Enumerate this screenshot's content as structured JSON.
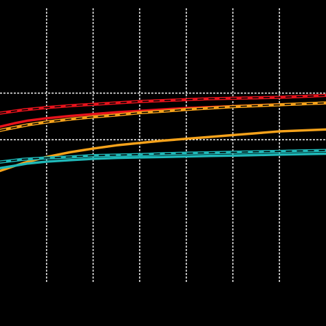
{
  "chart_data": {
    "type": "line",
    "background": "#000000",
    "grid": true,
    "grid_color": "#ffffff",
    "grid_style": "dashed",
    "x_range": [
      0,
      7
    ],
    "y_range": [
      0,
      7
    ],
    "x_gridlines": [
      1,
      2,
      3,
      4,
      5,
      6
    ],
    "y_gridlines": [
      4,
      5
    ],
    "series": [
      {
        "color": "#e8131c",
        "style": "dashed-with-black-dashes",
        "points": [
          [
            0,
            4.57
          ],
          [
            0.5,
            4.64
          ],
          [
            1,
            4.69
          ],
          [
            1.5,
            4.73
          ],
          [
            2,
            4.76
          ],
          [
            2.5,
            4.79
          ],
          [
            3,
            4.82
          ],
          [
            3.5,
            4.84
          ],
          [
            4,
            4.86
          ],
          [
            4.5,
            4.88
          ],
          [
            5,
            4.89
          ],
          [
            5.5,
            4.9
          ],
          [
            6,
            4.91
          ],
          [
            6.5,
            4.93
          ],
          [
            7,
            4.95
          ]
        ]
      },
      {
        "color": "#e8131c",
        "style": "solid",
        "points": [
          [
            0,
            4.28
          ],
          [
            0.3,
            4.35
          ],
          [
            0.6,
            4.41
          ],
          [
            1,
            4.46
          ],
          [
            1.5,
            4.51
          ],
          [
            2,
            4.55
          ],
          [
            2.5,
            4.59
          ],
          [
            3,
            4.62
          ],
          [
            3.5,
            4.65
          ],
          [
            4,
            4.68
          ],
          [
            4.5,
            4.7
          ],
          [
            5,
            4.72
          ],
          [
            5.5,
            4.74
          ],
          [
            6,
            4.76
          ],
          [
            6.5,
            4.77
          ],
          [
            7,
            4.78
          ]
        ]
      },
      {
        "color": "#f5a21b",
        "style": "dashed-with-black-dashes",
        "points": [
          [
            0,
            4.2
          ],
          [
            0.3,
            4.26
          ],
          [
            0.6,
            4.32
          ],
          [
            1,
            4.38
          ],
          [
            1.5,
            4.44
          ],
          [
            2,
            4.49
          ],
          [
            2.5,
            4.53
          ],
          [
            3,
            4.58
          ],
          [
            3.5,
            4.61
          ],
          [
            4,
            4.65
          ],
          [
            4.5,
            4.68
          ],
          [
            5,
            4.71
          ],
          [
            5.5,
            4.73
          ],
          [
            6,
            4.75
          ],
          [
            6.5,
            4.77
          ],
          [
            7,
            4.79
          ]
        ]
      },
      {
        "color": "#f5a21b",
        "style": "solid",
        "points": [
          [
            0,
            3.33
          ],
          [
            0.5,
            3.5
          ],
          [
            1,
            3.63
          ],
          [
            1.5,
            3.73
          ],
          [
            2,
            3.81
          ],
          [
            2.5,
            3.88
          ],
          [
            3,
            3.93
          ],
          [
            3.5,
            3.98
          ],
          [
            4,
            4.02
          ],
          [
            4.5,
            4.06
          ],
          [
            5,
            4.1
          ],
          [
            5.5,
            4.14
          ],
          [
            6,
            4.18
          ],
          [
            6.5,
            4.2
          ],
          [
            7,
            4.22
          ]
        ]
      },
      {
        "color": "#1fb8b8",
        "style": "dashed-with-black-dashes",
        "points": [
          [
            0,
            3.52
          ],
          [
            0.5,
            3.58
          ],
          [
            1,
            3.61
          ],
          [
            1.5,
            3.63
          ],
          [
            2,
            3.66
          ],
          [
            2.5,
            3.67
          ],
          [
            3,
            3.68
          ],
          [
            3.5,
            3.7
          ],
          [
            4,
            3.71
          ],
          [
            4.5,
            3.72
          ],
          [
            5,
            3.73
          ],
          [
            5.5,
            3.74
          ],
          [
            6,
            3.75
          ],
          [
            6.5,
            3.76
          ],
          [
            7,
            3.77
          ]
        ]
      },
      {
        "color": "#1fb8b8",
        "style": "solid",
        "points": [
          [
            0,
            3.39
          ],
          [
            0.3,
            3.44
          ],
          [
            0.6,
            3.49
          ],
          [
            1,
            3.53
          ],
          [
            1.5,
            3.56
          ],
          [
            2,
            3.59
          ],
          [
            2.5,
            3.61
          ],
          [
            3,
            3.62
          ],
          [
            3.5,
            3.63
          ],
          [
            4,
            3.64
          ],
          [
            4.5,
            3.65
          ],
          [
            5,
            3.66
          ],
          [
            5.5,
            3.67
          ],
          [
            6,
            3.68
          ],
          [
            6.5,
            3.69
          ],
          [
            7,
            3.7
          ]
        ]
      }
    ]
  }
}
